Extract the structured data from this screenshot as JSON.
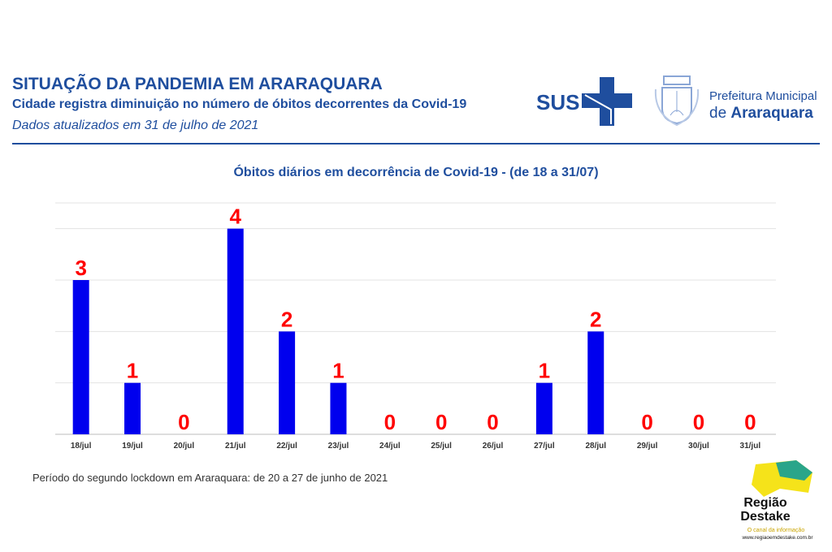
{
  "header": {
    "title": "SITUAÇÃO DA PANDEMIA EM ARARAQUARA",
    "subtitle": "Cidade registra diminuição no número de óbitos decorrentes da Covid-19",
    "updated": "Dados atualizados em 31 de julho de 2021"
  },
  "logos": {
    "sus": "SUS",
    "pref_line1": "Prefeitura Municipal",
    "pref_de": "de ",
    "pref_city": "Araraquara",
    "regiao": "Região Destake",
    "regiao_tag": "O canal da informação",
    "regiao_url": "www.regiaoemdestake.com.br"
  },
  "colors": {
    "bar": "#0000ee",
    "label": "#ff0000",
    "brand": "#1f4e9e"
  },
  "chart_data": {
    "type": "bar",
    "title": "Óbitos diários em decorrência de Covid-19 - (de 18 a 31/07)",
    "categories": [
      "18/jul",
      "19/jul",
      "20/jul",
      "21/jul",
      "22/jul",
      "23/jul",
      "24/jul",
      "25/jul",
      "26/jul",
      "27/jul",
      "28/jul",
      "29/jul",
      "30/jul",
      "31/jul"
    ],
    "values": [
      3,
      1,
      0,
      4,
      2,
      1,
      0,
      0,
      0,
      1,
      2,
      0,
      0,
      0
    ],
    "ylim": [
      0,
      4.5
    ],
    "grid": true,
    "xlabel": "",
    "ylabel": ""
  },
  "footnote": "Período do segundo lockdown em Araraquara: de 20 a 27 de junho de 2021"
}
